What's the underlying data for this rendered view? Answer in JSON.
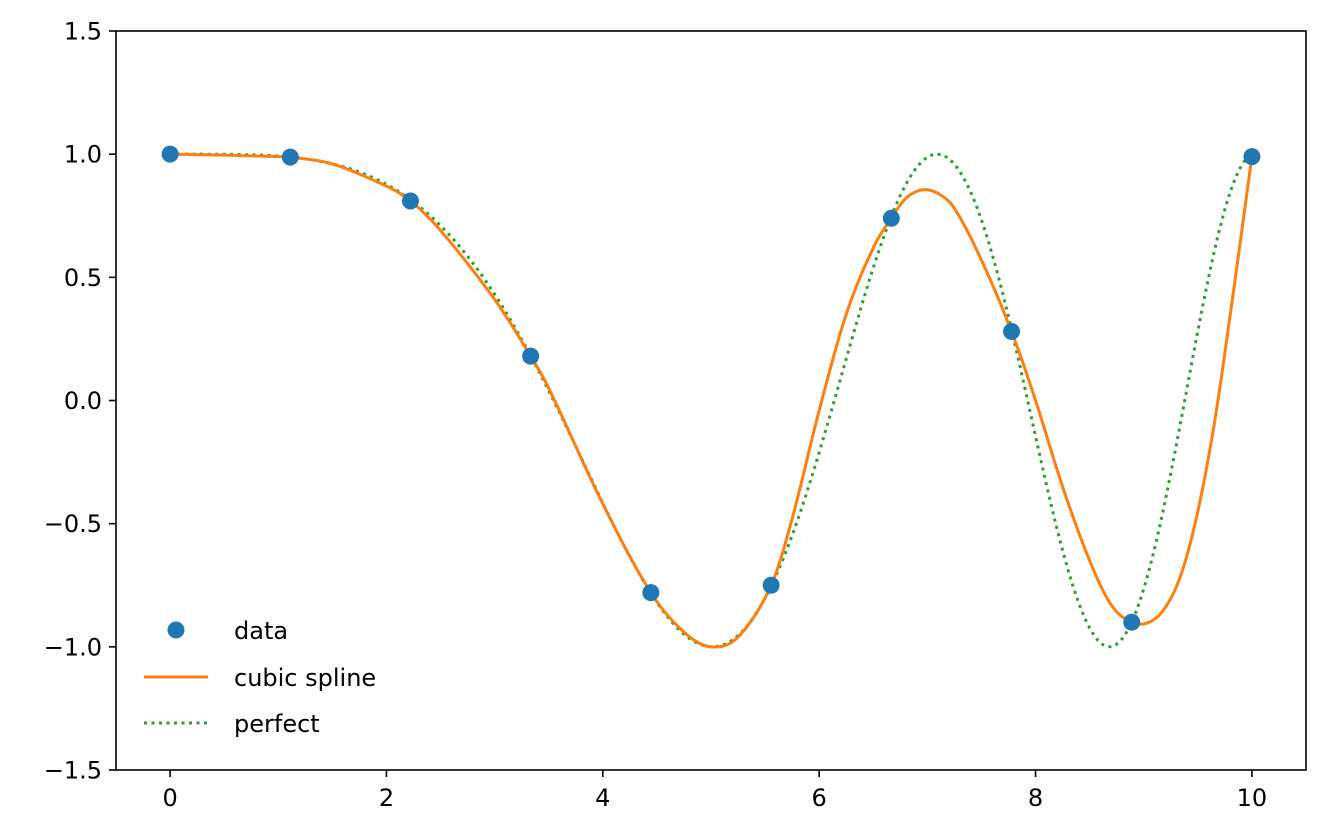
{
  "chart_data": {
    "type": "line",
    "title": "",
    "xlabel": "",
    "ylabel": "",
    "xlim": [
      -0.5,
      10.5
    ],
    "ylim": [
      -1.5,
      1.5
    ],
    "xticks": [
      0,
      2,
      4,
      6,
      8,
      10
    ],
    "xtick_labels": [
      "0",
      "2",
      "4",
      "6",
      "8",
      "10"
    ],
    "yticks": [
      -1.5,
      -1.0,
      -0.5,
      0.0,
      0.5,
      1.0,
      1.5
    ],
    "ytick_labels": [
      "−1.5",
      "−1.0",
      "−0.5",
      "0.0",
      "0.5",
      "1.0",
      "1.5"
    ],
    "grid": false,
    "legend_position": "lower-left",
    "series": [
      {
        "name": "data",
        "style": "markers",
        "color": "#1f77b4",
        "x": [
          0,
          1.111,
          2.222,
          3.333,
          4.444,
          5.556,
          6.667,
          7.778,
          8.889,
          10
        ],
        "y": [
          1.0,
          0.988,
          0.81,
          0.18,
          -0.78,
          -0.75,
          0.74,
          0.28,
          -0.9,
          0.99
        ]
      },
      {
        "name": "cubic spline",
        "style": "solid",
        "color": "#ff7f0e",
        "x": [
          0,
          0.5,
          1.0,
          1.111,
          1.5,
          2.0,
          2.222,
          2.5,
          3.0,
          3.333,
          3.5,
          4.0,
          4.444,
          4.75,
          5.0,
          5.25,
          5.556,
          5.75,
          6.0,
          6.25,
          6.5,
          6.667,
          6.8,
          6.95,
          7.1,
          7.25,
          7.5,
          7.778,
          8.0,
          8.25,
          8.5,
          8.7,
          8.889,
          9.05,
          9.2,
          9.35,
          9.5,
          9.65,
          9.8,
          10.0
        ],
        "y": [
          1.0,
          0.996,
          0.99,
          0.988,
          0.96,
          0.87,
          0.81,
          0.69,
          0.41,
          0.18,
          0.05,
          -0.42,
          -0.78,
          -0.94,
          -1.0,
          -0.96,
          -0.75,
          -0.48,
          -0.04,
          0.35,
          0.62,
          0.74,
          0.82,
          0.855,
          0.84,
          0.78,
          0.57,
          0.28,
          0.0,
          -0.35,
          -0.65,
          -0.83,
          -0.9,
          -0.9,
          -0.84,
          -0.7,
          -0.45,
          -0.1,
          0.35,
          0.99
        ]
      },
      {
        "name": "perfect",
        "style": "dotted",
        "color": "#2ca02c",
        "function": "cos(x^2/8)",
        "x_range": [
          0,
          10
        ]
      }
    ]
  }
}
